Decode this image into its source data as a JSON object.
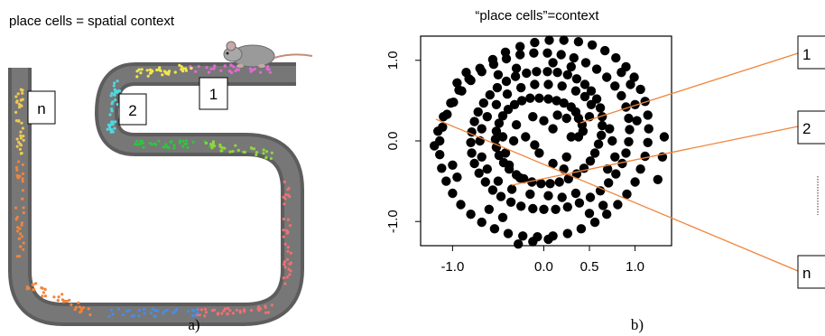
{
  "panel_a": {
    "title": "place cells = spatial context",
    "caption": "a)",
    "box_labels": [
      "n",
      "2",
      "1"
    ],
    "track_color": "#6d6d6d",
    "place_colors": [
      "#e06ad2",
      "#f0e64c",
      "#4fd8e0",
      "#3fd86a",
      "#2cc63c",
      "#8ed63c",
      "#f07070",
      "#f0843c",
      "#4a8de0",
      "#f0c850"
    ]
  },
  "panel_b": {
    "title": "“place cells”=context",
    "caption": "b)",
    "box_labels": [
      "1",
      "2",
      "n"
    ],
    "connector_color": "#f0843c",
    "chart_data": {
      "type": "scatter",
      "xlim": [
        -1.35,
        1.4
      ],
      "ylim": [
        -1.3,
        1.3
      ],
      "xticks": [
        -1.0,
        0.0,
        0.5,
        1.0
      ],
      "xtick_labels": [
        "-1.0",
        "0.0",
        "0.5",
        "1.0"
      ],
      "yticks": [
        1.0,
        0.0,
        -1.0
      ],
      "ytick_labels": [
        "1.0",
        "0.0",
        "-1.0"
      ],
      "marker_color": "#000000",
      "series": [
        {
          "points": [
            [
              0.3,
              0.05
            ],
            [
              0.38,
              0.05
            ],
            [
              0.43,
              0.12
            ],
            [
              0.42,
              0.2
            ],
            [
              0.38,
              0.28
            ],
            [
              0.35,
              0.36
            ],
            [
              0.3,
              0.42
            ],
            [
              0.22,
              0.47
            ],
            [
              0.14,
              0.5
            ],
            [
              0.05,
              0.52
            ],
            [
              -0.05,
              0.53
            ],
            [
              -0.15,
              0.53
            ],
            [
              -0.24,
              0.5
            ],
            [
              -0.32,
              0.45
            ],
            [
              -0.39,
              0.39
            ],
            [
              -0.45,
              0.31
            ],
            [
              -0.49,
              0.22
            ],
            [
              -0.52,
              0.12
            ],
            [
              -0.53,
              0.02
            ],
            [
              -0.52,
              -0.08
            ],
            [
              -0.49,
              -0.18
            ],
            [
              -0.44,
              -0.27
            ],
            [
              -0.38,
              -0.35
            ],
            [
              -0.3,
              -0.42
            ],
            [
              -0.22,
              -0.47
            ],
            [
              -0.13,
              -0.51
            ],
            [
              -0.03,
              -0.53
            ],
            [
              0.07,
              -0.53
            ],
            [
              0.17,
              -0.51
            ],
            [
              0.27,
              -0.47
            ],
            [
              0.36,
              -0.41
            ],
            [
              0.44,
              -0.34
            ],
            [
              0.51,
              -0.25
            ],
            [
              0.56,
              -0.15
            ],
            [
              0.6,
              -0.04
            ],
            [
              0.63,
              0.07
            ],
            [
              0.64,
              0.19
            ],
            [
              0.64,
              0.3
            ],
            [
              0.62,
              0.41
            ],
            [
              0.58,
              0.52
            ],
            [
              0.52,
              0.62
            ],
            [
              0.45,
              0.7
            ],
            [
              0.36,
              0.77
            ],
            [
              0.26,
              0.82
            ],
            [
              0.15,
              0.85
            ],
            [
              0.04,
              0.86
            ],
            [
              -0.08,
              0.86
            ],
            [
              -0.19,
              0.84
            ],
            [
              -0.31,
              0.8
            ],
            [
              -0.41,
              0.74
            ],
            [
              -0.51,
              0.66
            ],
            [
              -0.59,
              0.57
            ],
            [
              -0.66,
              0.47
            ],
            [
              -0.72,
              0.36
            ],
            [
              -0.76,
              0.24
            ],
            [
              -0.79,
              0.11
            ],
            [
              -0.8,
              -0.02
            ],
            [
              -0.79,
              -0.15
            ],
            [
              -0.76,
              -0.28
            ],
            [
              -0.71,
              -0.4
            ],
            [
              -0.64,
              -0.51
            ],
            [
              -0.56,
              -0.61
            ],
            [
              -0.47,
              -0.69
            ],
            [
              -0.36,
              -0.76
            ],
            [
              -0.25,
              -0.81
            ],
            [
              -0.12,
              -0.84
            ],
            [
              0.0,
              -0.85
            ],
            [
              0.13,
              -0.85
            ],
            [
              0.26,
              -0.82
            ],
            [
              0.39,
              -0.77
            ],
            [
              0.51,
              -0.7
            ],
            [
              0.62,
              -0.62
            ],
            [
              0.71,
              -0.52
            ],
            [
              0.79,
              -0.41
            ],
            [
              0.86,
              -0.28
            ],
            [
              0.9,
              -0.15
            ],
            [
              0.93,
              -0.01
            ],
            [
              0.94,
              0.14
            ],
            [
              0.93,
              0.28
            ],
            [
              0.9,
              0.42
            ],
            [
              0.85,
              0.56
            ],
            [
              0.78,
              0.68
            ],
            [
              0.69,
              0.79
            ],
            [
              0.58,
              0.89
            ],
            [
              0.46,
              0.97
            ],
            [
              0.33,
              1.03
            ],
            [
              0.19,
              1.07
            ],
            [
              0.04,
              1.09
            ],
            [
              -0.11,
              1.09
            ],
            [
              -0.26,
              1.07
            ],
            [
              -0.41,
              1.02
            ],
            [
              -0.55,
              0.95
            ],
            [
              -0.68,
              0.86
            ],
            [
              -0.8,
              0.75
            ],
            [
              -0.9,
              0.62
            ],
            [
              -0.99,
              0.48
            ],
            [
              -1.06,
              0.33
            ],
            [
              -1.11,
              0.17
            ],
            [
              -1.14,
              0.0
            ],
            [
              -1.14,
              -0.17
            ],
            [
              -1.12,
              -0.34
            ],
            [
              -1.07,
              -0.5
            ],
            [
              -1.0,
              -0.65
            ],
            [
              -0.91,
              -0.79
            ],
            [
              -0.8,
              -0.91
            ],
            [
              -0.68,
              -1.01
            ],
            [
              -0.54,
              -1.09
            ],
            [
              -0.39,
              -1.15
            ],
            [
              -0.23,
              -1.18
            ],
            [
              -0.07,
              -1.19
            ],
            [
              0.1,
              -1.18
            ],
            [
              0.26,
              -1.15
            ],
            [
              0.41,
              -1.09
            ],
            [
              0.56,
              -1.01
            ],
            [
              0.69,
              -0.91
            ],
            [
              0.81,
              -0.79
            ],
            [
              0.91,
              -0.66
            ],
            [
              1.0,
              -0.51
            ],
            [
              1.06,
              -0.35
            ],
            [
              1.11,
              -0.19
            ],
            [
              1.14,
              -0.02
            ],
            [
              1.15,
              0.15
            ],
            [
              1.14,
              0.32
            ],
            [
              1.11,
              0.49
            ],
            [
              1.06,
              0.64
            ],
            [
              0.99,
              0.79
            ],
            [
              0.9,
              0.92
            ],
            [
              0.79,
              1.03
            ],
            [
              0.67,
              1.12
            ],
            [
              0.53,
              1.19
            ],
            [
              0.38,
              1.23
            ],
            [
              0.22,
              1.25
            ],
            [
              0.06,
              1.25
            ],
            [
              -0.1,
              1.22
            ],
            [
              -0.26,
              1.17
            ],
            [
              -0.42,
              1.1
            ],
            [
              -0.56,
              1.01
            ],
            [
              -0.7,
              0.9
            ],
            [
              -0.82,
              0.77
            ],
            [
              -0.93,
              0.63
            ],
            [
              -1.02,
              0.47
            ],
            [
              -1.1,
              0.3
            ],
            [
              -1.16,
              0.12
            ],
            [
              -1.2,
              -0.06
            ],
            [
              1.25,
              -0.48
            ],
            [
              1.3,
              -0.2
            ],
            [
              1.32,
              0.05
            ],
            [
              -0.28,
              -1.28
            ],
            [
              -0.12,
              -1.25
            ],
            [
              0.05,
              -1.22
            ],
            [
              -0.26,
              -0.46
            ],
            [
              -0.38,
              -0.3
            ],
            [
              -0.42,
              -0.15
            ],
            [
              -0.33,
              0.0
            ],
            [
              -0.2,
              0.05
            ],
            [
              -0.1,
              -0.05
            ],
            [
              -0.05,
              -0.15
            ],
            [
              0.1,
              -0.28
            ],
            [
              0.22,
              -0.35
            ],
            [
              0.25,
              -0.2
            ],
            [
              0.1,
              0.15
            ],
            [
              0.0,
              0.25
            ],
            [
              -0.12,
              0.3
            ],
            [
              0.15,
              0.32
            ],
            [
              0.25,
              0.28
            ],
            [
              -0.3,
              0.2
            ],
            [
              -0.45,
              0.05
            ],
            [
              0.5,
              0.3
            ],
            [
              0.52,
              0.45
            ],
            [
              0.72,
              0.15
            ],
            [
              0.75,
              0.0
            ],
            [
              0.78,
              -0.2
            ],
            [
              0.7,
              -0.35
            ],
            [
              0.2,
              -0.7
            ],
            [
              0.35,
              -0.65
            ],
            [
              0.05,
              -0.68
            ],
            [
              -0.15,
              -0.66
            ],
            [
              -0.35,
              -0.6
            ],
            [
              -0.5,
              -0.5
            ],
            [
              -0.62,
              -0.35
            ],
            [
              -0.68,
              -0.2
            ],
            [
              -0.7,
              0.0
            ],
            [
              -0.68,
              0.15
            ],
            [
              -0.62,
              0.3
            ],
            [
              -0.52,
              0.45
            ],
            [
              -0.4,
              0.58
            ],
            [
              -0.25,
              0.66
            ],
            [
              -0.1,
              0.7
            ],
            [
              0.05,
              0.7
            ],
            [
              0.2,
              0.68
            ],
            [
              0.35,
              0.62
            ],
            [
              0.45,
              0.55
            ],
            [
              -0.85,
              0.85
            ],
            [
              -0.95,
              0.72
            ],
            [
              0.85,
              0.85
            ],
            [
              0.95,
              0.7
            ],
            [
              -0.6,
              -0.85
            ],
            [
              -0.45,
              -0.95
            ],
            [
              0.65,
              -0.8
            ],
            [
              0.5,
              -0.9
            ],
            [
              1.02,
              0.25
            ],
            [
              1.0,
              0.45
            ],
            [
              -1.0,
              -0.3
            ],
            [
              -0.95,
              -0.45
            ],
            [
              -0.3,
              0.9
            ],
            [
              -0.5,
              0.82
            ],
            [
              0.3,
              0.92
            ],
            [
              0.1,
              0.97
            ]
          ]
        }
      ]
    }
  }
}
